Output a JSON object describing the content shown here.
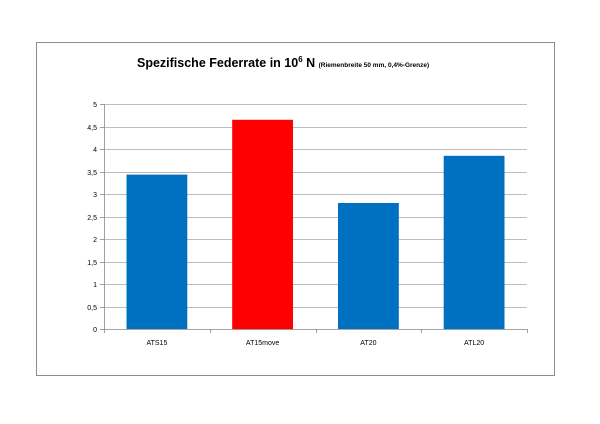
{
  "chart_data": {
    "type": "bar",
    "title": {
      "main": "Spezifische Federrate in 10",
      "superscript": "6",
      "unit": " N ",
      "subtitle": "(Riemenbreite 50 mm, 0,4%-Grenze)"
    },
    "categories": [
      "ATS15",
      "AT15move",
      "AT20",
      "ATL20"
    ],
    "values": [
      3.43,
      4.65,
      2.8,
      3.85
    ],
    "bar_colors": [
      "#0070c0",
      "#ff0000",
      "#0070c0",
      "#0070c0"
    ],
    "ylim": [
      0,
      5
    ],
    "y_ticks": [
      "0",
      "0,5",
      "1",
      "1,5",
      "2",
      "2,5",
      "3",
      "3,5",
      "4",
      "4,5",
      "5"
    ],
    "xlabel": "",
    "ylabel": "",
    "grid": "horizontal",
    "gridline_color": "#a6a6a6",
    "axis_color": "#888888",
    "legend": "none"
  }
}
